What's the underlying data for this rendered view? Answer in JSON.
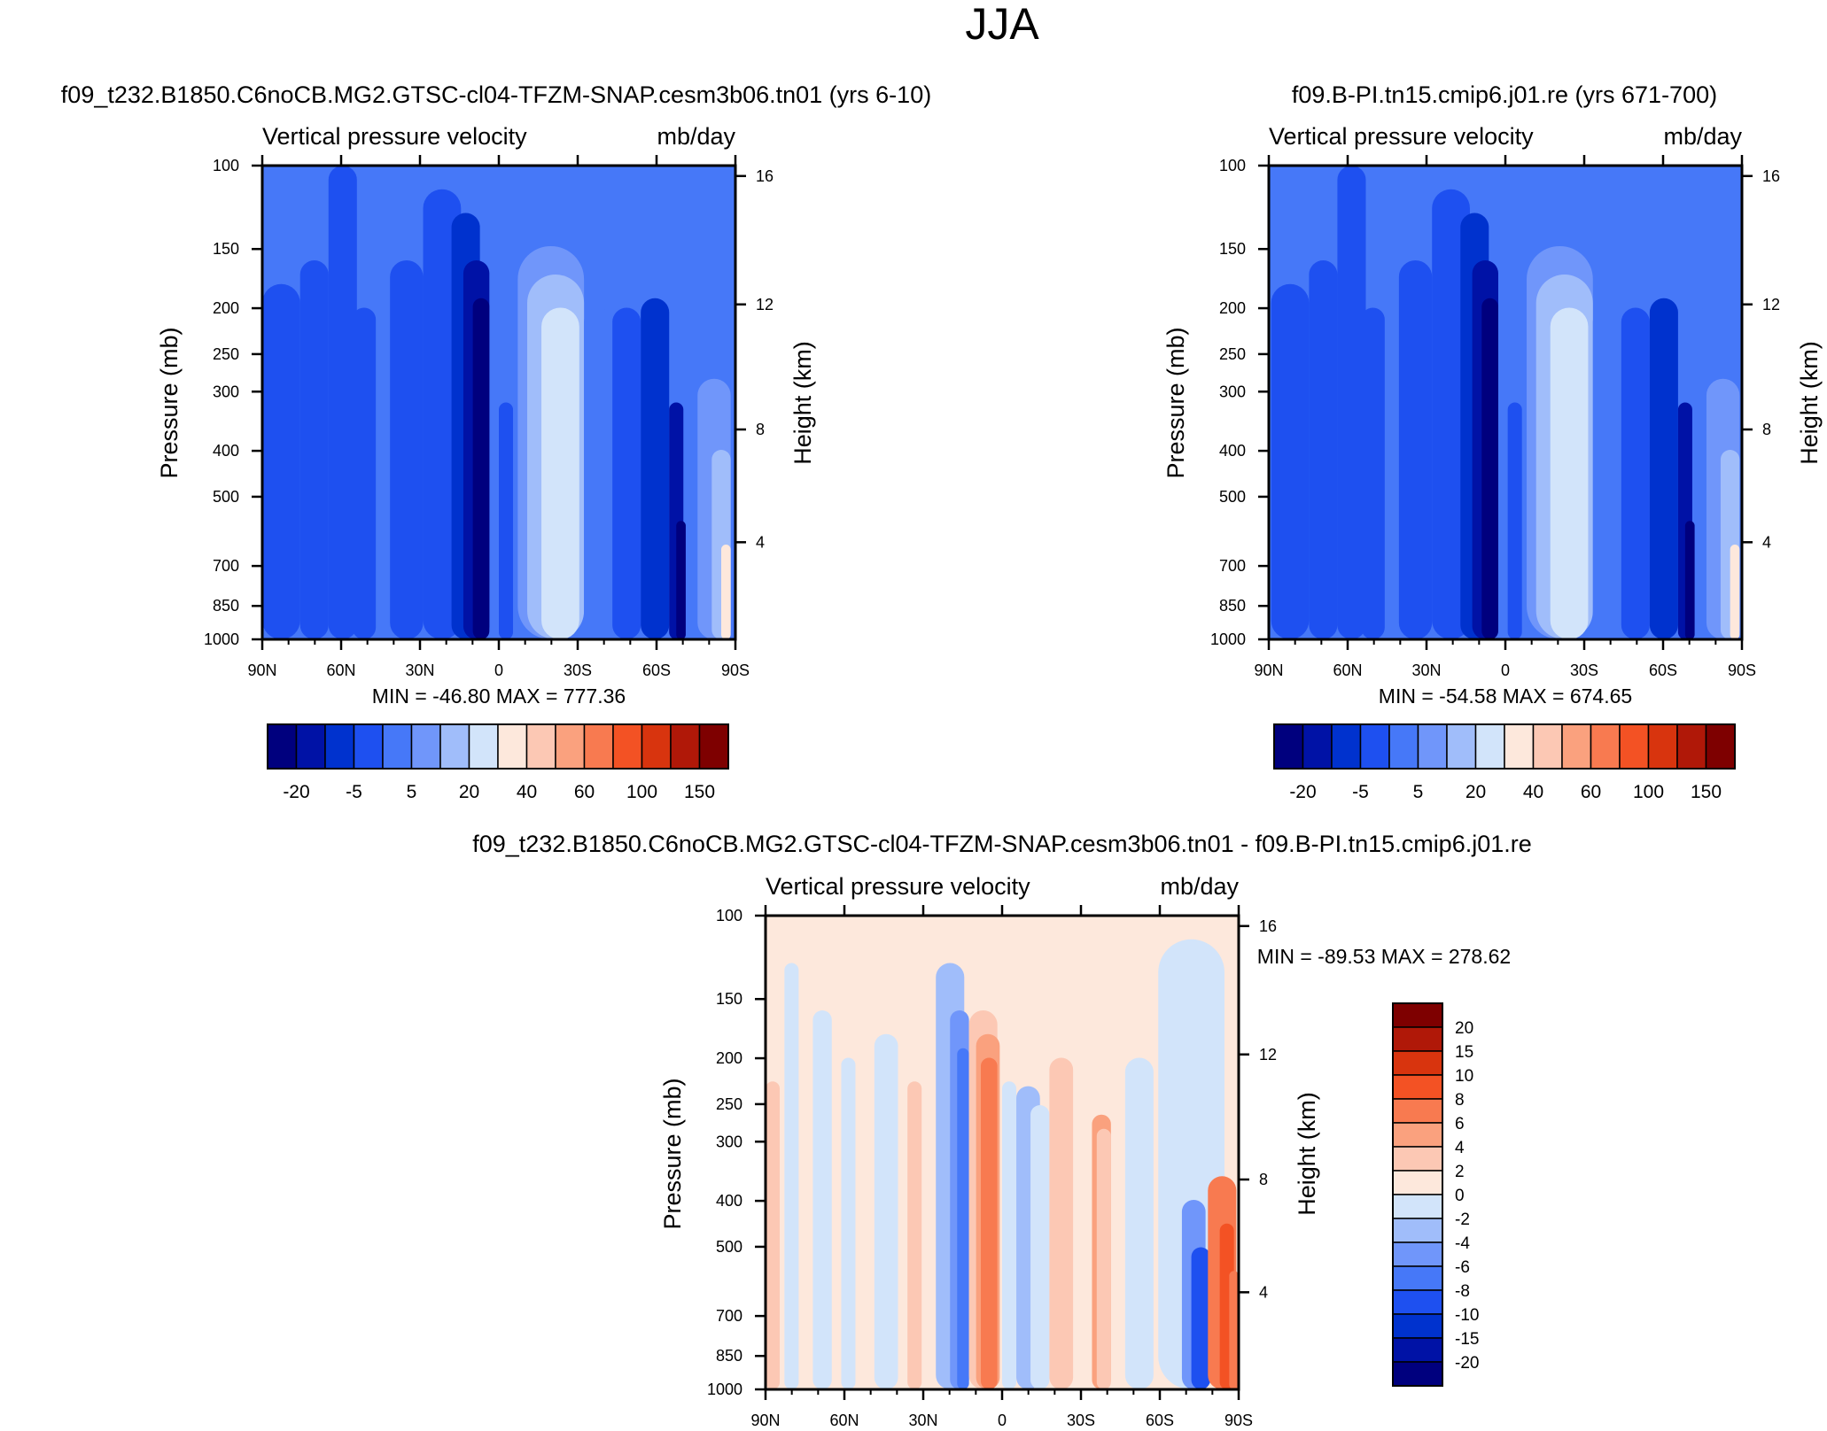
{
  "figure": {
    "title": "JJA"
  },
  "colors": {
    "main_levels": [
      "#00007e",
      "#0012a6",
      "#0032ce",
      "#1e50f0",
      "#4678f8",
      "#7096fa",
      "#a0bdfa",
      "#d2e4fa",
      "#fde8dc",
      "#fcc8b4",
      "#faa17e",
      "#f87a50",
      "#f35224",
      "#d8340e",
      "#b01808",
      "#7e0000"
    ],
    "diff_levels": [
      "#00007e",
      "#0012a6",
      "#0032ce",
      "#1e50f0",
      "#4678f8",
      "#7096fa",
      "#a0bdfa",
      "#d2e4fa",
      "#fde8dc",
      "#fcc8b4",
      "#faa17e",
      "#f87a50",
      "#f35224",
      "#d8340e",
      "#b01808",
      "#7e0000"
    ]
  },
  "chart_data": [
    {
      "type": "heatmap",
      "title": "f09_t232.B1850.C6noCB.MG2.GTSC-cl04-TFZM-SNAP.cesm3b06.tn01 (yrs 6-10)",
      "left_label": "Vertical pressure velocity",
      "right_label": "mb/day",
      "ylabel": "Pressure (mb)",
      "ylabel2": "Height (km)",
      "x_ticks": [
        "90N",
        "60N",
        "30N",
        "0",
        "30S",
        "60S",
        "90S"
      ],
      "y_ticks": [
        "100",
        "150",
        "200",
        "250",
        "300",
        "400",
        "500",
        "700",
        "850",
        "1000"
      ],
      "y2_ticks": [
        "16",
        "12",
        "8",
        "4"
      ],
      "stats": "MIN = -46.80  MAX = 777.36",
      "colorbar_labels": [
        "-20",
        "-5",
        "5",
        "20",
        "40",
        "60",
        "100",
        "150"
      ],
      "colorbar_orientation": "horizontal"
    },
    {
      "type": "heatmap",
      "title": "f09.B-PI.tn15.cmip6.j01.re (yrs 671-700)",
      "left_label": "Vertical pressure velocity",
      "right_label": "mb/day",
      "ylabel": "Pressure (mb)",
      "ylabel2": "Height (km)",
      "x_ticks": [
        "90N",
        "60N",
        "30N",
        "0",
        "30S",
        "60S",
        "90S"
      ],
      "y_ticks": [
        "100",
        "150",
        "200",
        "250",
        "300",
        "400",
        "500",
        "700",
        "850",
        "1000"
      ],
      "y2_ticks": [
        "16",
        "12",
        "8",
        "4"
      ],
      "stats": "MIN = -54.58  MAX = 674.65",
      "colorbar_labels": [
        "-20",
        "-5",
        "5",
        "20",
        "40",
        "60",
        "100",
        "150"
      ],
      "colorbar_orientation": "horizontal"
    },
    {
      "type": "heatmap",
      "title": "f09_t232.B1850.C6noCB.MG2.GTSC-cl04-TFZM-SNAP.cesm3b06.tn01 - f09.B-PI.tn15.cmip6.j01.re",
      "left_label": "Vertical pressure velocity",
      "right_label": "mb/day",
      "ylabel": "Pressure (mb)",
      "ylabel2": "Height (km)",
      "x_ticks": [
        "90N",
        "60N",
        "30N",
        "0",
        "30S",
        "60S",
        "90S"
      ],
      "y_ticks": [
        "100",
        "150",
        "200",
        "250",
        "300",
        "400",
        "500",
        "700",
        "850",
        "1000"
      ],
      "y2_ticks": [
        "16",
        "12",
        "8",
        "4"
      ],
      "stats": "MIN = -89.53  MAX = 278.62",
      "colorbar_labels": [
        "20",
        "15",
        "10",
        "8",
        "6",
        "4",
        "2",
        "0",
        "-2",
        "-4",
        "-6",
        "-8",
        "-10",
        "-15",
        "-20"
      ],
      "colorbar_orientation": "vertical"
    }
  ]
}
